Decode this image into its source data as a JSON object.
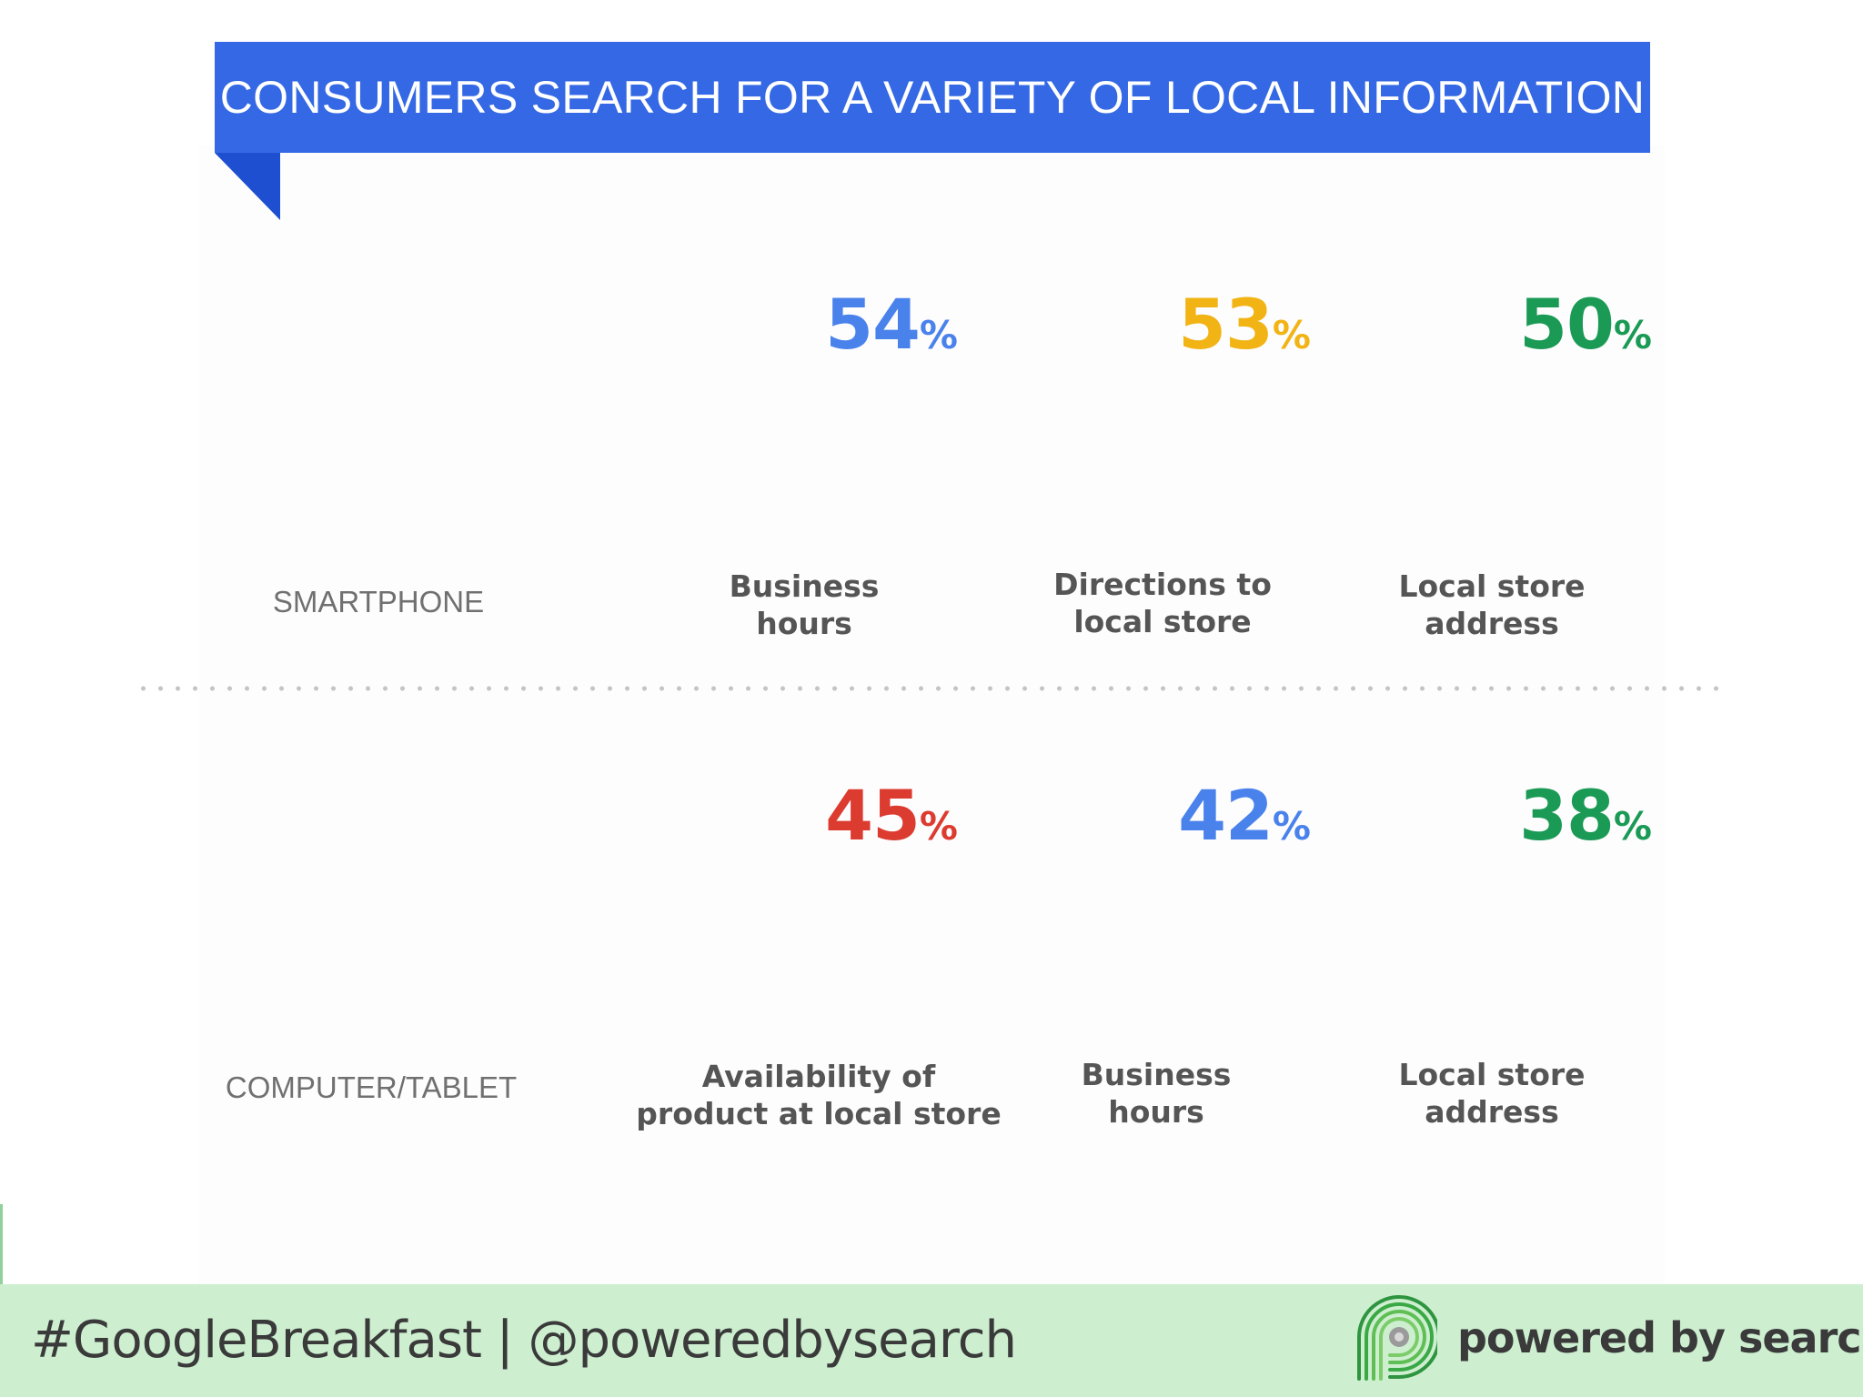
{
  "banner": {
    "title": "CONSUMERS SEARCH FOR A VARIETY OF LOCAL INFORMATION"
  },
  "colors": {
    "banner": "#3468e4",
    "banner_fold": "#1d4fd0",
    "blue": "#4a82ec",
    "yellow": "#f2b314",
    "green": "#1a9a55",
    "red": "#dc3b30",
    "footer_bg": "#cdefd0"
  },
  "chart_data": {
    "type": "table",
    "title": "CONSUMERS SEARCH FOR A VARIETY OF LOCAL INFORMATION",
    "unit": "%",
    "rows": [
      {
        "name": "SMARTPHONE",
        "items": [
          {
            "value": 54,
            "label": "Business hours",
            "label_lines": [
              "Business",
              "hours"
            ],
            "color": "#4a82ec"
          },
          {
            "value": 53,
            "label": "Directions to local store",
            "label_lines": [
              "Directions to",
              "local store"
            ],
            "color": "#f2b314"
          },
          {
            "value": 50,
            "label": "Local store address",
            "label_lines": [
              "Local store",
              "address"
            ],
            "color": "#1a9a55"
          }
        ]
      },
      {
        "name": "COMPUTER/TABLET",
        "items": [
          {
            "value": 45,
            "label": "Availability of product at local store",
            "label_lines": [
              "Availability of",
              "product at local store"
            ],
            "color": "#dc3b30"
          },
          {
            "value": 42,
            "label": "Business hours",
            "label_lines": [
              "Business",
              "hours"
            ],
            "color": "#4a82ec"
          },
          {
            "value": 38,
            "label": "Local store address",
            "label_lines": [
              "Local store",
              "address"
            ],
            "color": "#1a9a55"
          }
        ]
      }
    ]
  },
  "footer": {
    "hashtag_text": "#GoogleBreakfast | @poweredbysearch",
    "brand_name": "powered by search",
    "logo_icon": "powered-by-search-logo-icon"
  }
}
